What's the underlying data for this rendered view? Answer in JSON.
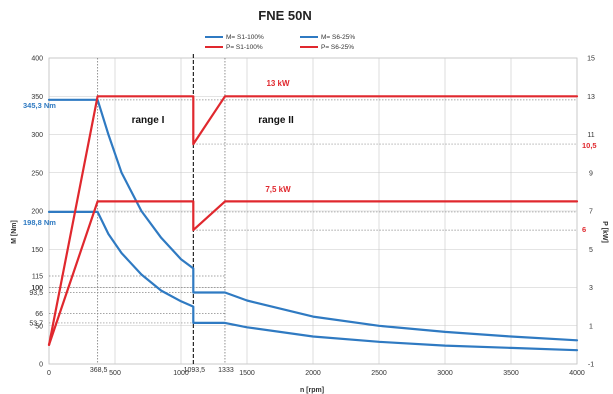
{
  "chart_data": {
    "type": "line",
    "title": "FNE 50N",
    "xlabel": "n [rpm]",
    "ylabel_left": "M [Nm]",
    "ylabel_right": "P [kW]",
    "x_ticks": [
      0,
      500,
      1000,
      1500,
      2000,
      2500,
      3000,
      3500,
      4000
    ],
    "x_special_ticks": [
      "368,5",
      "1093,5",
      "1333"
    ],
    "xlim": [
      0,
      4000
    ],
    "ylim_left": [
      0,
      400
    ],
    "ylim_right": [
      -1,
      15
    ],
    "y_left_ticks": [
      "0",
      "50",
      "100",
      "150",
      "200",
      "250",
      "300",
      "350",
      "400"
    ],
    "y_left_special_ticks": [
      "115",
      "100",
      "93,5",
      "66",
      "53,7"
    ],
    "y_right_ticks": [
      "-1",
      "1",
      "3",
      "5",
      "7",
      "9",
      "11",
      "13",
      "15"
    ],
    "y_right_special_ticks": [
      "10,5",
      "6"
    ],
    "grid": true,
    "legend": "top",
    "series": [
      {
        "name": "M= S1-100%",
        "axis": "left",
        "color": "#2f7ac2",
        "x": [
          0,
          368.5,
          450,
          550,
          700,
          850,
          1000,
          1093.5,
          1093.5,
          1333,
          1500,
          2000,
          2500,
          3000,
          3500,
          4000
        ],
        "y": [
          345.3,
          345.3,
          300,
          250,
          200,
          165,
          137,
          125,
          93.5,
          93.5,
          83,
          62,
          50,
          42,
          36,
          31
        ]
      },
      {
        "name": "M= S6-25%",
        "axis": "left",
        "color": "#2f7ac2",
        "x": [
          0,
          368.5,
          450,
          550,
          700,
          850,
          1000,
          1093.5,
          1093.5,
          1333,
          1500,
          2000,
          2500,
          3000,
          3500,
          4000
        ],
        "y": [
          198.8,
          198.8,
          170,
          145,
          117,
          96,
          82,
          75,
          53.7,
          53.7,
          48,
          36,
          29,
          24,
          21,
          18
        ]
      },
      {
        "name": "P= S1-100%",
        "axis": "right",
        "color": "#e0282e",
        "x": [
          0,
          368.5,
          1093.5,
          1093.5,
          1333,
          4000
        ],
        "y": [
          0,
          13,
          13,
          10.5,
          13,
          13
        ]
      },
      {
        "name": "P= S6-25%",
        "axis": "right",
        "color": "#e0282e",
        "x": [
          0,
          368.5,
          1093.5,
          1093.5,
          1333,
          4000
        ],
        "y": [
          0,
          7.5,
          7.5,
          6,
          7.5,
          7.5
        ]
      }
    ],
    "annotations": {
      "power_s1": "13 kW",
      "power_s6": "7,5 kW",
      "torque_s1": "345,3 Nm",
      "torque_s6": "198,8 Nm",
      "range_1": "range I",
      "range_2": "range II",
      "power_s1_min": "10,5",
      "power_s6_min": "6"
    },
    "colors": {
      "torque": "#2f7ac2",
      "power": "#e0282e",
      "grid": "#c8c8c8"
    }
  }
}
